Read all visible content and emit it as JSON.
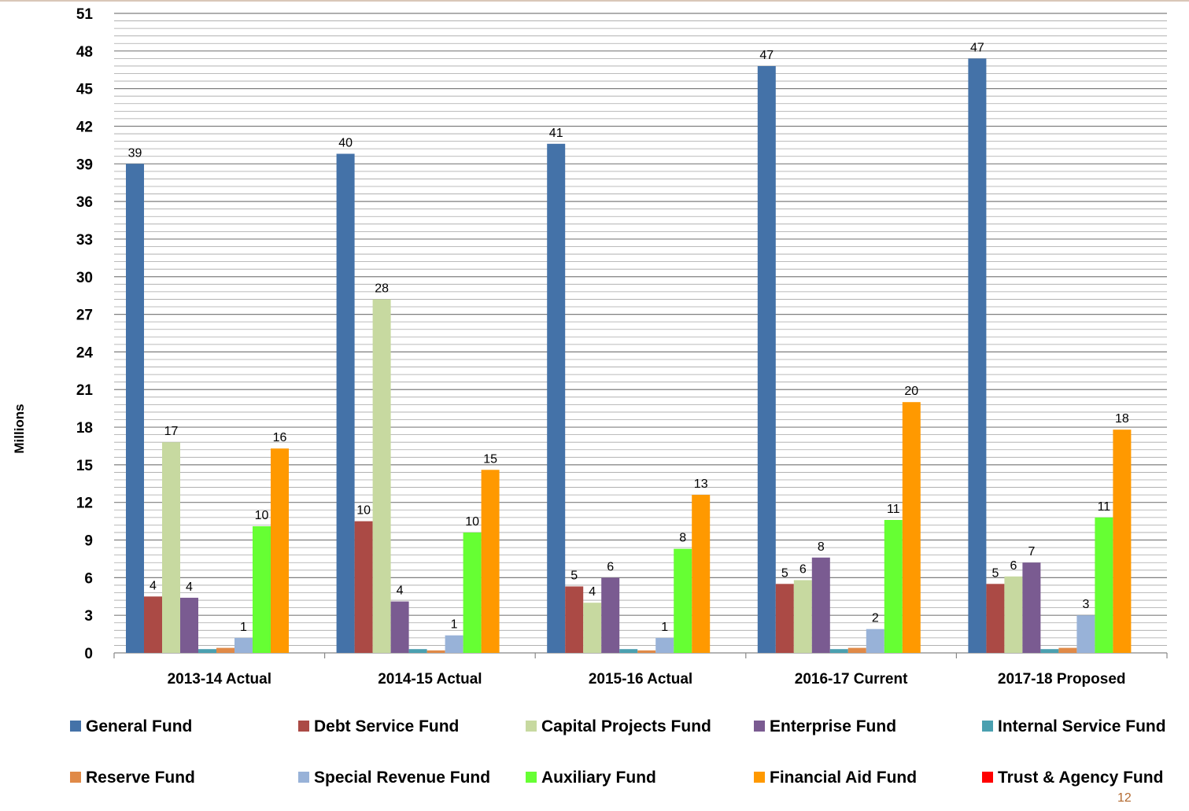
{
  "page_number": "12",
  "chart_data": {
    "type": "bar",
    "title": "",
    "xlabel": "",
    "ylabel": "Millions",
    "ylim": [
      0,
      51
    ],
    "ytick_step": 3,
    "minor_gridline_step": 0.6,
    "grid": true,
    "legend_position": "bottom",
    "categories": [
      "2013-14 Actual",
      "2014-15 Actual",
      "2015-16 Actual",
      "2016-17 Current",
      "2017-18 Proposed"
    ],
    "series": [
      {
        "name": "General Fund",
        "color": "#4472a8",
        "values": [
          39,
          39.8,
          40.6,
          46.8,
          47.4
        ],
        "labels": [
          "39",
          "40",
          "41",
          "47",
          "47"
        ]
      },
      {
        "name": "Debt Service Fund",
        "color": "#ab4a45",
        "values": [
          4.5,
          10.5,
          5.3,
          5.5,
          5.5
        ],
        "labels": [
          "4",
          "10",
          "5",
          "5",
          "5"
        ]
      },
      {
        "name": "Capital Projects Fund",
        "color": "#c7d9a0",
        "values": [
          16.8,
          28.2,
          4.0,
          5.8,
          6.1
        ],
        "labels": [
          "17",
          "28",
          "4",
          "6",
          "6"
        ]
      },
      {
        "name": "Enterprise Fund",
        "color": "#7a5b91",
        "values": [
          4.4,
          4.1,
          6.0,
          7.6,
          7.2
        ],
        "labels": [
          "4",
          "4",
          "6",
          "8",
          "7"
        ]
      },
      {
        "name": "Internal Service Fund",
        "color": "#4aa0b0",
        "values": [
          0.3,
          0.3,
          0.3,
          0.3,
          0.3
        ],
        "labels": [
          "",
          "",
          "",
          "",
          ""
        ]
      },
      {
        "name": "Reserve Fund",
        "color": "#e08a48",
        "values": [
          0.4,
          0.2,
          0.2,
          0.4,
          0.4
        ],
        "labels": [
          "",
          "",
          "",
          "",
          ""
        ]
      },
      {
        "name": "Special Revenue Fund",
        "color": "#98b2d8",
        "values": [
          1.2,
          1.4,
          1.2,
          1.9,
          3.0
        ],
        "labels": [
          "1",
          "1",
          "1",
          "2",
          "3"
        ]
      },
      {
        "name": "Auxiliary Fund",
        "color": "#66ff33",
        "values": [
          10.1,
          9.6,
          8.3,
          10.6,
          10.8
        ],
        "labels": [
          "10",
          "10",
          "8",
          "11",
          "11"
        ]
      },
      {
        "name": "Financial Aid Fund",
        "color": "#ff9900",
        "values": [
          16.3,
          14.6,
          12.6,
          20.0,
          17.8
        ],
        "labels": [
          "16",
          "15",
          "13",
          "20",
          "18"
        ]
      },
      {
        "name": "Trust & Agency Fund",
        "color": "#ff0000",
        "values": [
          0,
          0,
          0,
          0,
          0
        ],
        "labels": [
          "",
          "",
          "",
          "",
          ""
        ]
      }
    ]
  }
}
